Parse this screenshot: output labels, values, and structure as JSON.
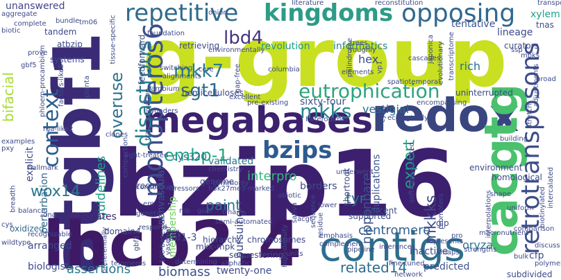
{
  "palette": [
    "#440154",
    "#46327e",
    "#365c8d",
    "#277f8e",
    "#1fa187",
    "#4ac16d",
    "#a0da39",
    "#fde725"
  ],
  "words": [
    {
      "text": "g-group",
      "color": "#c8e020"
    },
    {
      "text": "bzip16",
      "color": "#3d1f6f"
    },
    {
      "text": "atgbf1",
      "color": "#3b2b76"
    },
    {
      "text": "lhcb2.4",
      "color": "#3e1a66"
    },
    {
      "text": "megabases",
      "color": "#3c216f"
    },
    {
      "text": "redox",
      "color": "#38457f"
    },
    {
      "text": "cacgtg",
      "color": "#4ac16d"
    },
    {
      "text": "contigs",
      "color": "#2c6e8e"
    },
    {
      "text": "repetitive",
      "color": "#2f6a8d"
    },
    {
      "text": "kingdoms",
      "color": "#2d9b87"
    },
    {
      "text": "opposing",
      "color": "#31688e"
    },
    {
      "text": "monopteros6",
      "color": "#3c4f8a"
    },
    {
      "text": "retrotransposons",
      "color": "#3d4d8a"
    },
    {
      "text": "context",
      "color": "#2b5f8e"
    },
    {
      "text": "eutrophication",
      "color": "#2ea37f"
    },
    {
      "text": "disastrous",
      "color": "#277f8e"
    },
    {
      "text": "overuse",
      "color": "#30718e"
    },
    {
      "text": "bzips",
      "color": "#2d5a8e"
    },
    {
      "text": "mkk7",
      "color": "#2a7b8e"
    },
    {
      "text": "sgt1",
      "color": "#2b6a8e"
    },
    {
      "text": "lbd4",
      "color": "#463480"
    },
    {
      "text": "mkks",
      "color": "#26848e"
    },
    {
      "text": "embp-1",
      "color": "#21a685"
    },
    {
      "text": "wox14",
      "color": "#2a788e"
    },
    {
      "text": "bifacial",
      "color": "#a8db34"
    },
    {
      "text": "expert",
      "color": "#1f9e89"
    },
    {
      "text": "mkkks",
      "color": "#3e4a89"
    },
    {
      "text": "related14",
      "color": "#2e6c8e"
    },
    {
      "text": "interpro",
      "color": "#35b779"
    },
    {
      "text": "assertions",
      "color": "#2a788e"
    },
    {
      "text": "guidelines",
      "color": "#1fa187"
    },
    {
      "text": "nipponbare",
      "color": "#3b528b"
    },
    {
      "text": "paint",
      "color": "#2d708e"
    },
    {
      "text": "centromere",
      "color": "#34608d"
    },
    {
      "text": "tyr",
      "color": "#2e6f8e"
    },
    {
      "text": "biomass",
      "color": "#3b518b"
    },
    {
      "text": "sixty-four",
      "color": "#3b528b"
    },
    {
      "text": "vestigial",
      "color": "#31688e"
    },
    {
      "text": "revolution",
      "color": "#1f998a"
    },
    {
      "text": "informatics",
      "color": "#26838f"
    },
    {
      "text": "hex",
      "color": "#3e4989"
    },
    {
      "text": "tentative",
      "color": "#3b528b"
    },
    {
      "text": "rich",
      "color": "#2c718e"
    },
    {
      "text": "unanswered",
      "color": "#414487"
    },
    {
      "text": "pursuing",
      "color": "#3e4989"
    },
    {
      "text": "membership",
      "color": "#6ccd5a"
    },
    {
      "text": "duplications",
      "color": "#3a548c"
    },
    {
      "text": "gbf1-3",
      "color": "#3e4989"
    },
    {
      "text": "cys320",
      "color": "#2f6b8e"
    },
    {
      "text": "validated",
      "color": "#2a788e"
    },
    {
      "text": "perturbation",
      "color": "#31688e"
    },
    {
      "text": "nonvascular",
      "color": "#3a548c"
    },
    {
      "text": "dedicates",
      "color": "#482878"
    },
    {
      "text": "explicit",
      "color": "#3e4989"
    },
    {
      "text": "arranged",
      "color": "#3e4989"
    },
    {
      "text": "biologist",
      "color": "#3e4989"
    },
    {
      "text": "oxidized",
      "color": "#31688e"
    },
    {
      "text": "domain4",
      "color": "#3e4989"
    },
    {
      "text": "record",
      "color": "#3e4989"
    },
    {
      "text": "borders",
      "color": "#3e4989"
    },
    {
      "text": "inactive",
      "color": "#3e4989"
    },
    {
      "text": "predicted",
      "color": "#3b528b"
    },
    {
      "text": "twenty-one",
      "color": "#3e4989"
    },
    {
      "text": "oryza",
      "color": "#2a788e"
    },
    {
      "text": "subdivided",
      "color": "#3e4989"
    },
    {
      "text": "cfp",
      "color": "#3e4989"
    },
    {
      "text": "uninterrupted",
      "color": "#3e4989"
    },
    {
      "text": "lineage",
      "color": "#3e4989"
    },
    {
      "text": "curators",
      "color": "#3e4989"
    },
    {
      "text": "xylem",
      "color": "#1fa187"
    },
    {
      "text": "tnas",
      "color": "#3e4989"
    },
    {
      "text": "environment",
      "color": "#3e4989"
    },
    {
      "text": "homological",
      "color": "#3e4989"
    },
    {
      "text": "mkk-mpk",
      "color": "#3e4989"
    },
    {
      "text": "genome",
      "color": "#3e4989"
    },
    {
      "text": "chromosomes",
      "color": "#3e4989"
    },
    {
      "text": "sequestering",
      "color": "#3e4989"
    },
    {
      "text": "hierarchy",
      "color": "#3e4989"
    },
    {
      "text": "percent",
      "color": "#3e4989"
    },
    {
      "text": "supported",
      "color": "#3e4989"
    },
    {
      "text": "shortroot",
      "color": "#3e4989"
    },
    {
      "text": "gip",
      "color": "#3e4989"
    },
    {
      "text": "hemicelluloses",
      "color": "#3e4989"
    },
    {
      "text": "retrieving",
      "color": "#3e4989"
    },
    {
      "text": "feedforward",
      "color": "#3e4989"
    },
    {
      "text": "systems",
      "color": "#3e4989"
    },
    {
      "text": "atbzip",
      "color": "#3e4989"
    },
    {
      "text": "tandem",
      "color": "#3e4989"
    },
    {
      "text": "tm06",
      "color": "#3e4989"
    },
    {
      "text": "trees",
      "color": "#3e4989"
    },
    {
      "text": "roughly",
      "color": "#3e4989"
    },
    {
      "text": "cascades",
      "color": "#3e4989"
    },
    {
      "text": "palindrome",
      "color": "#3e4989"
    },
    {
      "text": "vp1",
      "color": "#3e4989"
    },
    {
      "text": "japonica",
      "color": "#3e4989"
    },
    {
      "text": "evolutionary",
      "color": "#3e4989"
    },
    {
      "text": "transcriptome",
      "color": "#3e4989"
    },
    {
      "text": "broad",
      "color": "#3e4989"
    },
    {
      "text": "adjustments",
      "color": "#3e4989"
    },
    {
      "text": "stretch",
      "color": "#3e4989"
    },
    {
      "text": "building",
      "color": "#3e4989"
    },
    {
      "text": "biotinylated",
      "color": "#3e4989"
    },
    {
      "text": "intercalated",
      "color": "#3e4989"
    },
    {
      "text": "discuss",
      "color": "#3e4989"
    },
    {
      "text": "polymer",
      "color": "#3e4989"
    },
    {
      "text": "bulk",
      "color": "#3e4989"
    },
    {
      "text": "strengths",
      "color": "#3e4989"
    },
    {
      "text": "represents",
      "color": "#3e4989"
    },
    {
      "text": "inferences",
      "color": "#3e4989"
    },
    {
      "text": "pipeline",
      "color": "#3e4989"
    },
    {
      "text": "acgt",
      "color": "#3e4989"
    },
    {
      "text": "sativa",
      "color": "#3e4989"
    },
    {
      "text": "emphasis",
      "color": "#3e4989"
    },
    {
      "text": "fine-tuned",
      "color": "#3e4989"
    },
    {
      "text": "units",
      "color": "#3e4989"
    },
    {
      "text": "determining",
      "color": "#3e4989"
    },
    {
      "text": "telomeres",
      "color": "#3e4989"
    },
    {
      "text": "hallmark",
      "color": "#3e4989"
    },
    {
      "text": "breadth",
      "color": "#3e4989"
    },
    {
      "text": "wildtype",
      "color": "#3e4989"
    },
    {
      "text": "balance",
      "color": "#3e4989"
    },
    {
      "text": "light-treated",
      "color": "#3e4989"
    },
    {
      "text": "transactivation",
      "color": "#3e4989"
    },
    {
      "text": "cambium",
      "color": "#3e4989"
    },
    {
      "text": "clones",
      "color": "#3e4989"
    },
    {
      "text": "rga-like2",
      "color": "#3e4989"
    },
    {
      "text": "factors-like5",
      "color": "#3e4989"
    },
    {
      "text": "phloem-procambium",
      "color": "#3e4989"
    },
    {
      "text": "gbf5",
      "color": "#3e4989"
    },
    {
      "text": "complete",
      "color": "#3e4989"
    },
    {
      "text": "bundle",
      "color": "#3e4989"
    },
    {
      "text": "aggregate",
      "color": "#3e4989"
    },
    {
      "text": "biotic",
      "color": "#3e4989"
    },
    {
      "text": "prove",
      "color": "#3e4989"
    },
    {
      "text": "pxy",
      "color": "#3e4989"
    },
    {
      "text": "examples",
      "color": "#3e4989"
    },
    {
      "text": "dna",
      "color": "#3e4989"
    },
    {
      "text": "alignments",
      "color": "#3e4989"
    },
    {
      "text": "switching",
      "color": "#3e4989"
    },
    {
      "text": "foundation",
      "color": "#3e4989"
    },
    {
      "text": "columbia",
      "color": "#3e4989"
    },
    {
      "text": "elements",
      "color": "#3e4989"
    },
    {
      "text": "literature",
      "color": "#3e4989"
    },
    {
      "text": "reconstitution",
      "color": "#3e4989"
    },
    {
      "text": "ssp",
      "color": "#3e4989"
    },
    {
      "text": "cyan",
      "color": "#3e4989"
    },
    {
      "text": "encompassing",
      "color": "#3e4989"
    },
    {
      "text": "ecologically",
      "color": "#3e4989"
    },
    {
      "text": "heterodimer",
      "color": "#3e4989"
    },
    {
      "text": "compaction",
      "color": "#3e4989"
    },
    {
      "text": "consortium",
      "color": "#3e4989"
    },
    {
      "text": "stressors",
      "color": "#3e4989"
    },
    {
      "text": "h3k27me3-marked",
      "color": "#3e4989"
    },
    {
      "text": "chemistry",
      "color": "#3e4989"
    },
    {
      "text": "abiotic",
      "color": "#3e4989"
    },
    {
      "text": "underwent",
      "color": "#3e4989"
    },
    {
      "text": "software-assisted",
      "color": "#3e4989"
    },
    {
      "text": "shape",
      "color": "#3e4989"
    },
    {
      "text": "uniform",
      "color": "#3e4989"
    },
    {
      "text": "transposons",
      "color": "#3e4989"
    },
    {
      "text": "comparison",
      "color": "#3e4989"
    },
    {
      "text": "macronutrient",
      "color": "#3e4989"
    },
    {
      "text": "maps",
      "color": "#3e4989"
    },
    {
      "text": "pro",
      "color": "#3e4989"
    },
    {
      "text": "interpolations",
      "color": "#3e4989"
    },
    {
      "text": "complement",
      "color": "#3e4989"
    },
    {
      "text": "semi-automated",
      "color": "#3e4989"
    },
    {
      "text": "high-density",
      "color": "#3e4989"
    },
    {
      "text": "aliphatic",
      "color": "#3e4989"
    },
    {
      "text": "180-base-pair",
      "color": "#3e4989"
    },
    {
      "text": "gbf3",
      "color": "#3e4989"
    },
    {
      "text": "goal",
      "color": "#3e4989"
    },
    {
      "text": "trna",
      "color": "#3e4989"
    },
    {
      "text": "mb",
      "color": "#3e4989"
    },
    {
      "text": "cys",
      "color": "#3e4989"
    },
    {
      "text": "recognizable",
      "color": "#3e4989"
    },
    {
      "text": "preferentially",
      "color": "#3e4989"
    },
    {
      "text": "vascular",
      "color": "#3e4989"
    },
    {
      "text": "rice",
      "color": "#3e4989"
    },
    {
      "text": "network",
      "color": "#3e4989"
    },
    {
      "text": "lower",
      "color": "#3e4989"
    },
    {
      "text": "sequence",
      "color": "#3e4989"
    },
    {
      "text": "residue",
      "color": "#3e4989"
    },
    {
      "text": "respond",
      "color": "#3e4989"
    },
    {
      "text": "em",
      "color": "#3e4989"
    },
    {
      "text": "commonly",
      "color": "#3e4989"
    },
    {
      "text": "genetic",
      "color": "#3e4989"
    },
    {
      "text": "spatiotemporal",
      "color": "#3e4989"
    },
    {
      "text": "excellent",
      "color": "#3e4989"
    },
    {
      "text": "pre-existing",
      "color": "#3e4989"
    },
    {
      "text": "environmentally",
      "color": "#3e4989"
    },
    {
      "text": "gap-free",
      "color": "#3e4989"
    },
    {
      "text": "tissue-specific",
      "color": "#3e4989"
    },
    {
      "text": "core",
      "color": "#3e4989"
    },
    {
      "text": "planta",
      "color": "#3e4989"
    },
    {
      "text": "onion",
      "color": "#3e4989"
    },
    {
      "text": "mpks",
      "color": "#3e4989"
    },
    {
      "text": "promoters",
      "color": "#3e4989"
    },
    {
      "text": "wonders",
      "color": "#3e4989"
    }
  ]
}
